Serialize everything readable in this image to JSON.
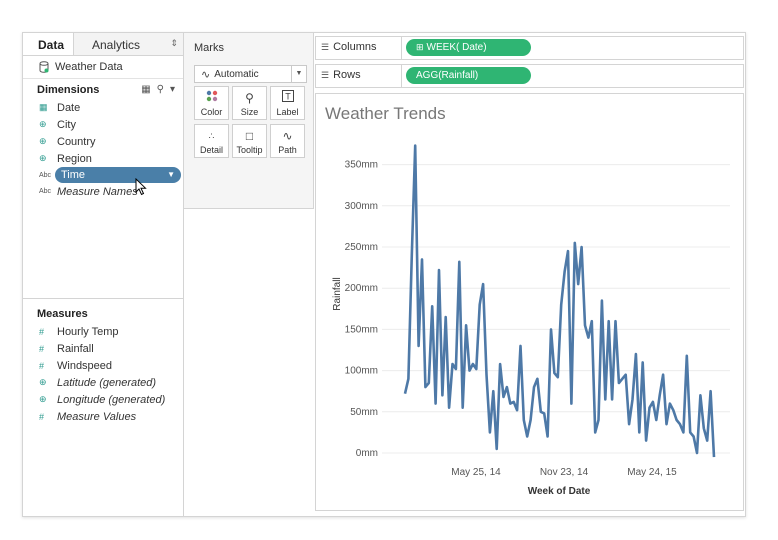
{
  "data_pane": {
    "tabs": {
      "active": "Data",
      "inactive": "Analytics"
    },
    "datasource": "Weather Data",
    "dimensions_title": "Dimensions",
    "dimensions": [
      {
        "name": "Date",
        "icon": "calendar-icon",
        "italic": false
      },
      {
        "name": "City",
        "icon": "globe-icon",
        "italic": false
      },
      {
        "name": "Country",
        "icon": "globe-icon",
        "italic": false
      },
      {
        "name": "Region",
        "icon": "globe-icon",
        "italic": false
      },
      {
        "name": "Time",
        "icon": "abc-icon",
        "italic": false,
        "selected": true
      },
      {
        "name": "Measure Names",
        "icon": "abc-icon",
        "italic": true
      }
    ],
    "abc_label": "Abc",
    "measures_title": "Measures",
    "measures": [
      {
        "name": "Hourly Temp",
        "icon": "hash-icon",
        "italic": false
      },
      {
        "name": "Rainfall",
        "icon": "hash-icon",
        "italic": false
      },
      {
        "name": "Windspeed",
        "icon": "hash-icon",
        "italic": false
      },
      {
        "name": "Latitude (generated)",
        "icon": "globe-icon",
        "italic": true
      },
      {
        "name": "Longitude (generated)",
        "icon": "globe-icon",
        "italic": true
      },
      {
        "name": "Measure Values",
        "icon": "hash-icon",
        "italic": true
      }
    ]
  },
  "marks": {
    "title": "Marks",
    "type": "Automatic",
    "buttons": [
      "Color",
      "Size",
      "Label",
      "Detail",
      "Tooltip",
      "Path"
    ]
  },
  "shelves": {
    "columns_label": "Columns",
    "columns_pill": "WEEK( Date)",
    "rows_label": "Rows",
    "rows_pill": "AGG(Rainfall)"
  },
  "colors": {
    "pill": "#2fb573",
    "line": "#4e79a7",
    "selected": "#4a7fa8"
  },
  "chart_data": {
    "type": "line",
    "title": "Weather Trends",
    "xlabel": "Week of Date",
    "ylabel": "Rainfall",
    "yticks": [
      "0mm",
      "50mm",
      "100mm",
      "150mm",
      "200mm",
      "250mm",
      "300mm",
      "350mm"
    ],
    "ylim": [
      0,
      370
    ],
    "xticks": [
      "May 25, 14",
      "Nov 23, 14",
      "May 24, 15"
    ],
    "grid": true,
    "series": [
      {
        "values": [
          72,
          90,
          240,
          373,
          130,
          235,
          80,
          85,
          178,
          60,
          222,
          70,
          165,
          55,
          108,
          102,
          232,
          55,
          155,
          100,
          108,
          102,
          180,
          205,
          95,
          25,
          75,
          5,
          108,
          68,
          80,
          60,
          62,
          52,
          130,
          40,
          20,
          40,
          80,
          90,
          50,
          48,
          20,
          150,
          97,
          92,
          180,
          220,
          245,
          60,
          255,
          205,
          250,
          155,
          140,
          160,
          25,
          40,
          185,
          65,
          160,
          65,
          160,
          85,
          90,
          95,
          35,
          65,
          120,
          25,
          110,
          15,
          55,
          62,
          40,
          70,
          95,
          35,
          60,
          52,
          40,
          35,
          25,
          118,
          25,
          20,
          0,
          70,
          30,
          15,
          75,
          -5
        ]
      }
    ]
  }
}
